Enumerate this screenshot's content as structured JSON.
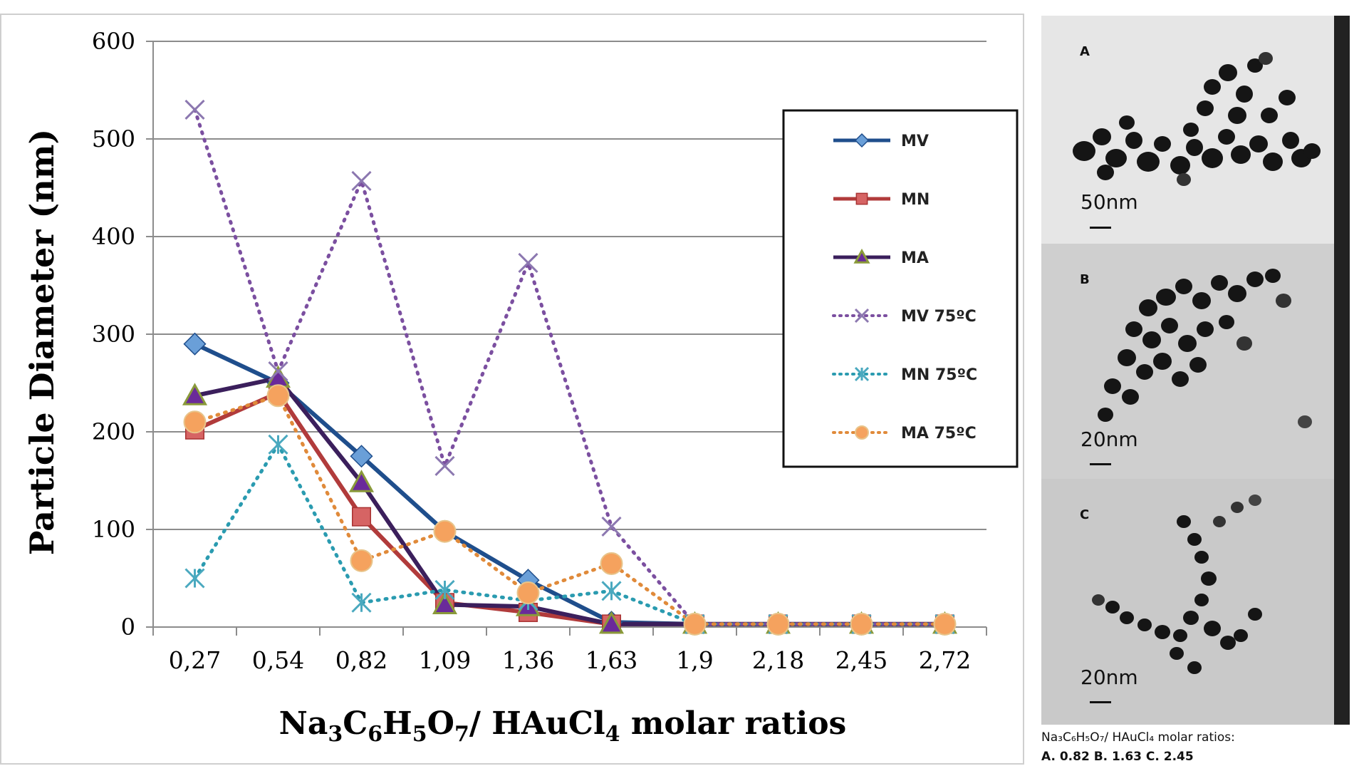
{
  "chart_data": {
    "type": "line",
    "title": "",
    "ylabel": "Particle Diameter (nm)",
    "xlabel": {
      "base": "Na",
      "parts": [
        {
          "t": "Na",
          "s": false
        },
        {
          "t": "3",
          "s": true
        },
        {
          "t": "C",
          "s": false
        },
        {
          "t": "6",
          "s": true
        },
        {
          "t": "H",
          "s": false
        },
        {
          "t": "5",
          "s": true
        },
        {
          "t": "O",
          "s": false
        },
        {
          "t": "7",
          "s": true
        },
        {
          "t": "/ HAuCl",
          "s": false
        },
        {
          "t": "4",
          "s": true
        },
        {
          "t": " molar ratios",
          "s": false
        }
      ]
    },
    "categories": [
      "0,27",
      "0,54",
      "0,82",
      "1,09",
      "1,36",
      "1,63",
      "1,9",
      "2,18",
      "2,45",
      "2,72"
    ],
    "ylim": [
      0,
      600
    ],
    "yticks": [
      0,
      100,
      200,
      300,
      400,
      500,
      600
    ],
    "grid": true,
    "legend_position": "top-right",
    "series": [
      {
        "name": "MV",
        "color": "#1f4e8c",
        "marker": "diamond",
        "marker_fill": "#6a9fd8",
        "dash": false,
        "values": [
          290,
          250,
          175,
          98,
          48,
          5,
          3,
          3,
          3,
          3
        ]
      },
      {
        "name": "MN",
        "color": "#b13b3b",
        "marker": "square",
        "marker_fill": "#d66464",
        "dash": false,
        "values": [
          202,
          240,
          113,
          25,
          15,
          3,
          3,
          3,
          3,
          3
        ]
      },
      {
        "name": "MA",
        "color": "#3b1f5c",
        "marker": "triangle",
        "marker_fill": "#6a2a9a",
        "dash": false,
        "values": [
          237,
          255,
          148,
          23,
          21,
          3,
          3,
          3,
          3,
          3
        ]
      },
      {
        "name": "MV 75ºC",
        "color": "#7b4fa0",
        "marker": "x",
        "marker_fill": "#8c78b0",
        "dash": true,
        "values": [
          530,
          262,
          457,
          165,
          373,
          103,
          3,
          3,
          3,
          3
        ]
      },
      {
        "name": "MN 75ºC",
        "color": "#2a9bb0",
        "marker": "asterisk",
        "marker_fill": "#4aa9bf",
        "dash": true,
        "values": [
          50,
          187,
          25,
          38,
          27,
          37,
          3,
          3,
          3,
          3
        ]
      },
      {
        "name": "MA 75ºC",
        "color": "#e08a3a",
        "marker": "circle",
        "marker_fill": "#f5a25e",
        "dash": true,
        "values": [
          210,
          237,
          68,
          98,
          35,
          65,
          3,
          3,
          3,
          3
        ]
      }
    ]
  },
  "tem": {
    "panels": [
      {
        "letter": "A",
        "scale": "50nm"
      },
      {
        "letter": "B",
        "scale": "20nm"
      },
      {
        "letter": "C",
        "scale": "20nm"
      }
    ],
    "caption_line1": "Na₃C₆H₅O₇/ HAuCl₄ molar ratios:",
    "caption_line2": "A. 0.82     B. 1.63     C. 2.45"
  }
}
